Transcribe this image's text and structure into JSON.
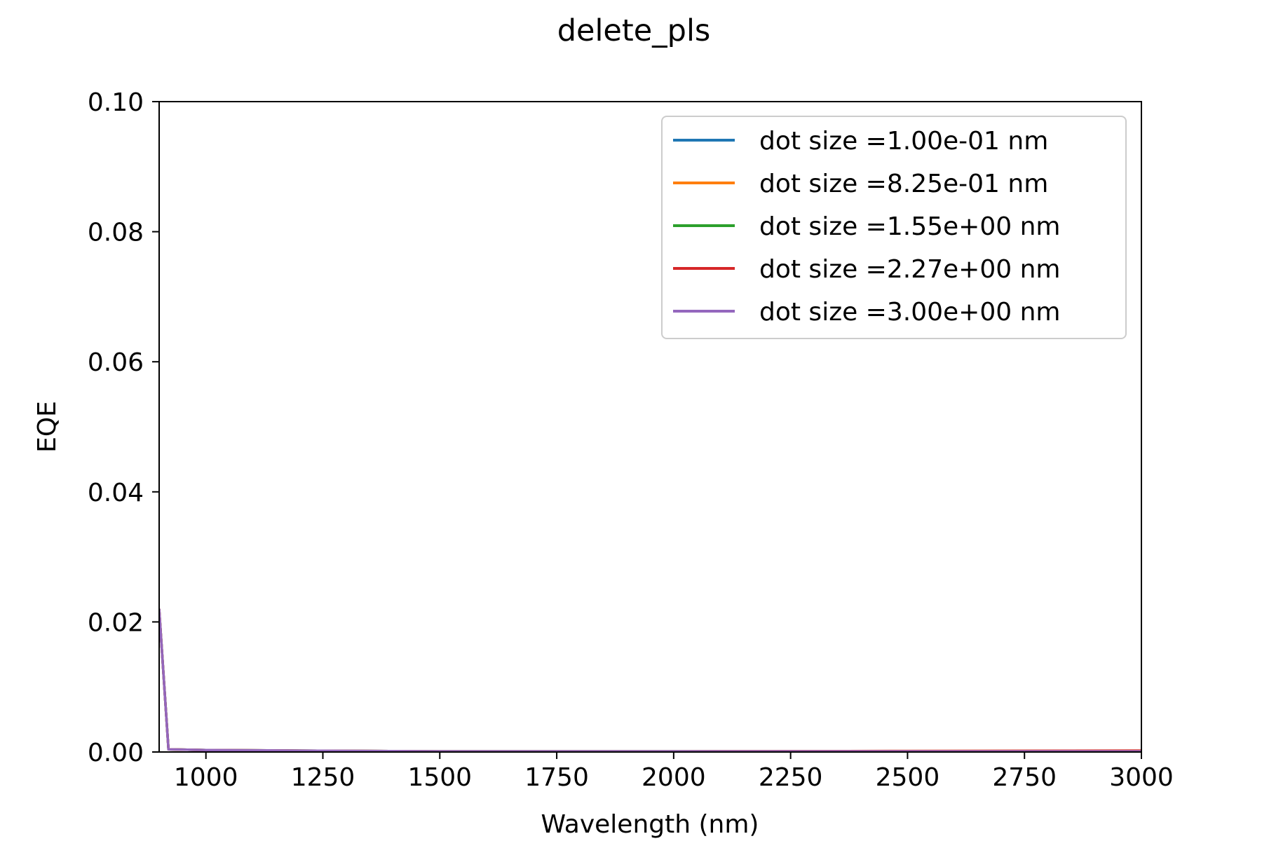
{
  "chart_data": {
    "type": "line",
    "title": "delete_pls",
    "xlabel": "Wavelength (nm)",
    "ylabel": "EQE",
    "xlim": [
      900,
      3000
    ],
    "ylim": [
      0,
      0.1
    ],
    "xticks": [
      1000,
      1250,
      1500,
      1750,
      2000,
      2250,
      2500,
      2750,
      3000
    ],
    "xtick_labels": [
      "1000",
      "1250",
      "1500",
      "1750",
      "2000",
      "2250",
      "2500",
      "2750",
      "3000"
    ],
    "yticks": [
      0,
      0.02,
      0.04,
      0.06,
      0.08,
      0.1
    ],
    "ytick_labels": [
      "0.00",
      "0.02",
      "0.04",
      "0.06",
      "0.08",
      "0.10"
    ],
    "grid": false,
    "legend_position": "top-right",
    "x": [
      900,
      920,
      1000,
      1200,
      1500,
      2000,
      2500,
      3000
    ],
    "series": [
      {
        "name": "dot size =1.00e-01 nm",
        "color": "#1f77b4",
        "values": [
          0.022,
          0.0004,
          0.0003,
          0.0002,
          0.0001,
          0.0001,
          0.0001,
          0.0001
        ]
      },
      {
        "name": "dot size =8.25e-01 nm",
        "color": "#ff7f0e",
        "values": [
          0.022,
          0.0004,
          0.0003,
          0.0002,
          0.0001,
          0.0001,
          0.00015,
          0.0002
        ]
      },
      {
        "name": "dot size =1.55e+00 nm",
        "color": "#2ca02c",
        "values": [
          0.022,
          0.0004,
          0.0003,
          0.0002,
          0.0001,
          0.0001,
          0.0001,
          0.0001
        ]
      },
      {
        "name": "dot size =2.27e+00 nm",
        "color": "#d62728",
        "values": [
          0.022,
          0.0004,
          0.0003,
          0.0002,
          0.0001,
          0.0001,
          0.00015,
          0.0002
        ]
      },
      {
        "name": "dot size =3.00e+00 nm",
        "color": "#9467bd",
        "values": [
          0.022,
          0.0004,
          0.0003,
          0.0002,
          0.0001,
          0.0001,
          0.0001,
          0.0001
        ]
      }
    ]
  }
}
